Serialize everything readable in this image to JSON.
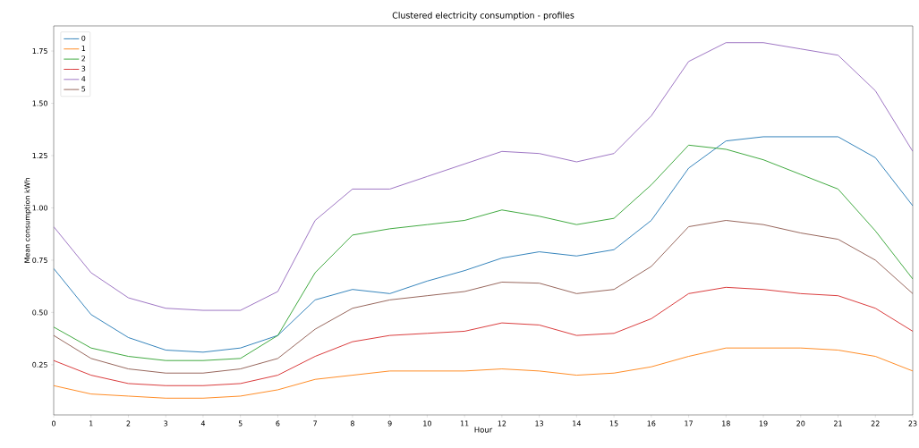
{
  "chart_data": {
    "type": "line",
    "title": "Clustered electricity consumption - profiles",
    "xlabel": "Hour",
    "ylabel": "Mean consumption kWh",
    "x": [
      0,
      1,
      2,
      3,
      4,
      5,
      6,
      7,
      8,
      9,
      10,
      11,
      12,
      13,
      14,
      15,
      16,
      17,
      18,
      19,
      20,
      21,
      22,
      23
    ],
    "series": [
      {
        "name": "0",
        "color": "#1f77b4",
        "values": [
          0.71,
          0.49,
          0.38,
          0.32,
          0.31,
          0.33,
          0.39,
          0.56,
          0.61,
          0.59,
          0.65,
          0.7,
          0.76,
          0.79,
          0.77,
          0.8,
          0.94,
          1.19,
          1.32,
          1.34,
          1.34,
          1.34,
          1.24,
          1.01
        ]
      },
      {
        "name": "1",
        "color": "#ff7f0e",
        "values": [
          0.15,
          0.11,
          0.1,
          0.09,
          0.09,
          0.1,
          0.13,
          0.18,
          0.2,
          0.22,
          0.22,
          0.22,
          0.23,
          0.22,
          0.2,
          0.21,
          0.24,
          0.29,
          0.33,
          0.33,
          0.33,
          0.32,
          0.29,
          0.22
        ]
      },
      {
        "name": "2",
        "color": "#2ca02c",
        "values": [
          0.43,
          0.33,
          0.29,
          0.27,
          0.27,
          0.28,
          0.39,
          0.69,
          0.87,
          0.9,
          0.92,
          0.94,
          0.99,
          0.96,
          0.92,
          0.95,
          1.11,
          1.3,
          1.28,
          1.23,
          1.16,
          1.09,
          0.89,
          0.66
        ]
      },
      {
        "name": "3",
        "color": "#d62728",
        "values": [
          0.27,
          0.2,
          0.16,
          0.15,
          0.15,
          0.16,
          0.2,
          0.29,
          0.36,
          0.39,
          0.4,
          0.41,
          0.45,
          0.44,
          0.39,
          0.4,
          0.47,
          0.59,
          0.62,
          0.61,
          0.59,
          0.58,
          0.52,
          0.41
        ]
      },
      {
        "name": "4",
        "color": "#9467bd",
        "values": [
          0.91,
          0.69,
          0.57,
          0.52,
          0.51,
          0.51,
          0.6,
          0.94,
          1.09,
          1.09,
          1.15,
          1.21,
          1.27,
          1.26,
          1.22,
          1.26,
          1.44,
          1.7,
          1.79,
          1.79,
          1.76,
          1.73,
          1.56,
          1.27
        ]
      },
      {
        "name": "5",
        "color": "#8c564b",
        "values": [
          0.39,
          0.28,
          0.23,
          0.21,
          0.21,
          0.23,
          0.28,
          0.42,
          0.52,
          0.56,
          0.58,
          0.6,
          0.645,
          0.64,
          0.59,
          0.61,
          0.72,
          0.91,
          0.94,
          0.92,
          0.88,
          0.85,
          0.75,
          0.59
        ]
      }
    ],
    "xlim": [
      0,
      23
    ],
    "xticks": [
      0,
      1,
      2,
      3,
      4,
      5,
      6,
      7,
      8,
      9,
      10,
      11,
      12,
      13,
      14,
      15,
      16,
      17,
      18,
      19,
      20,
      21,
      22,
      23
    ],
    "ylim": [
      0.01,
      1.87
    ],
    "yticks": [
      {
        "value": 0.25,
        "label": "0.25"
      },
      {
        "value": 0.5,
        "label": "0.50"
      },
      {
        "value": 0.75,
        "label": "0.75"
      },
      {
        "value": 1.0,
        "label": "1.00"
      },
      {
        "value": 1.25,
        "label": "1.25"
      },
      {
        "value": 1.5,
        "label": "1.50"
      },
      {
        "value": 1.75,
        "label": "1.75"
      }
    ],
    "legend": "top left",
    "marker": "none",
    "line_style": "solid",
    "grid": false
  }
}
